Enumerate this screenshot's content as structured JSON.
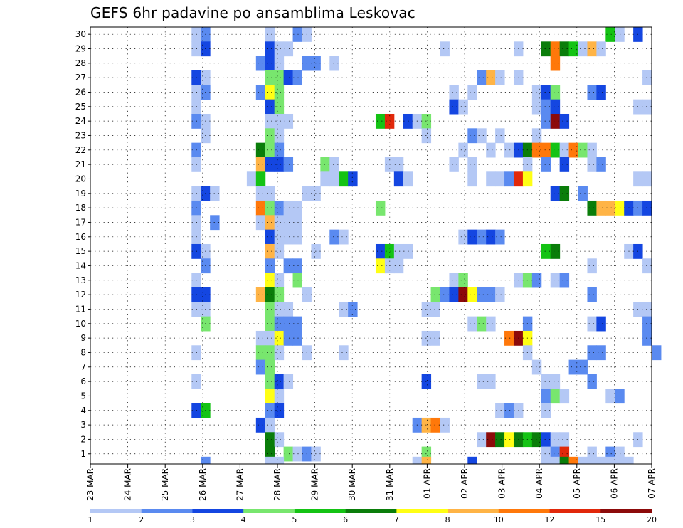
{
  "chart_data": {
    "type": "heatmap",
    "title": "GEFS 6hr padavine po ansamblima Leskovac",
    "xlabel": "",
    "ylabel": "",
    "y_tick_labels": [
      "1",
      "2",
      "3",
      "4",
      "5",
      "6",
      "7",
      "8",
      "9",
      "10",
      "11",
      "12",
      "13",
      "14",
      "15",
      "16",
      "17",
      "18",
      "19",
      "20",
      "21",
      "22",
      "23",
      "24",
      "25",
      "26",
      "27",
      "28",
      "29",
      "30"
    ],
    "x_tick_labels": [
      "23 MAR",
      "24 MAR",
      "25 MAR",
      "26 MAR",
      "27 MAR",
      "28 MAR",
      "29 MAR",
      "30 MAR",
      "31 MAR",
      "01 APR",
      "02 APR",
      "03 APR",
      "04 APR",
      "05 APR",
      "06 APR",
      "07 APR"
    ],
    "x_range_steps": [
      0,
      61
    ],
    "y_range": [
      0,
      30
    ],
    "grid": true,
    "colorbar": {
      "levels": [
        "1",
        "2",
        "3",
        "4",
        "5",
        "6",
        "7",
        "8",
        "10",
        "12",
        "15",
        "20"
      ],
      "colors": [
        "#b4c8f5",
        "#5a8af0",
        "#1446e1",
        "#78e66e",
        "#14c314",
        "#0a7d0a",
        "#ffff14",
        "#ffb446",
        "#ff780a",
        "#e1280a",
        "#8c0a0a"
      ]
    },
    "cells": [
      [
        11,
        30,
        1
      ],
      [
        12,
        30,
        2
      ],
      [
        19,
        30,
        1
      ],
      [
        22,
        30,
        2
      ],
      [
        23,
        30,
        1
      ],
      [
        56,
        30,
        5
      ],
      [
        57,
        30,
        1
      ],
      [
        59,
        30,
        3
      ],
      [
        11,
        29,
        1
      ],
      [
        12,
        29,
        3
      ],
      [
        19,
        29,
        3
      ],
      [
        20,
        29,
        1
      ],
      [
        21,
        29,
        1
      ],
      [
        38,
        29,
        1
      ],
      [
        46,
        29,
        1
      ],
      [
        49,
        29,
        6
      ],
      [
        50,
        29,
        9
      ],
      [
        51,
        29,
        6
      ],
      [
        52,
        29,
        5
      ],
      [
        53,
        29,
        1
      ],
      [
        54,
        29,
        8
      ],
      [
        55,
        29,
        1
      ],
      [
        18,
        28,
        2
      ],
      [
        19,
        28,
        3
      ],
      [
        20,
        28,
        1
      ],
      [
        23,
        28,
        2
      ],
      [
        24,
        28,
        2
      ],
      [
        26,
        28,
        1
      ],
      [
        50,
        28,
        9
      ],
      [
        11,
        27,
        3
      ],
      [
        12,
        27,
        1
      ],
      [
        19,
        27,
        4
      ],
      [
        20,
        27,
        4
      ],
      [
        21,
        27,
        3
      ],
      [
        22,
        27,
        2
      ],
      [
        42,
        27,
        2
      ],
      [
        43,
        27,
        8
      ],
      [
        44,
        27,
        1
      ],
      [
        46,
        27,
        1
      ],
      [
        60,
        27,
        1
      ],
      [
        11,
        26,
        1
      ],
      [
        12,
        26,
        2
      ],
      [
        18,
        26,
        2
      ],
      [
        19,
        26,
        7
      ],
      [
        20,
        26,
        4
      ],
      [
        39,
        26,
        1
      ],
      [
        41,
        26,
        1
      ],
      [
        48,
        26,
        1
      ],
      [
        49,
        26,
        3
      ],
      [
        50,
        26,
        4
      ],
      [
        54,
        26,
        2
      ],
      [
        55,
        26,
        3
      ],
      [
        11,
        25,
        1
      ],
      [
        19,
        25,
        3
      ],
      [
        20,
        25,
        4
      ],
      [
        39,
        25,
        3
      ],
      [
        40,
        25,
        1
      ],
      [
        48,
        25,
        1
      ],
      [
        49,
        25,
        2
      ],
      [
        50,
        25,
        3
      ],
      [
        59,
        25,
        1
      ],
      [
        60,
        25,
        1
      ],
      [
        11,
        24,
        2
      ],
      [
        12,
        24,
        1
      ],
      [
        19,
        24,
        1
      ],
      [
        20,
        24,
        1
      ],
      [
        21,
        24,
        1
      ],
      [
        31,
        24,
        5
      ],
      [
        32,
        24,
        10
      ],
      [
        34,
        24,
        3
      ],
      [
        35,
        24,
        1
      ],
      [
        36,
        24,
        4
      ],
      [
        49,
        24,
        2
      ],
      [
        50,
        24,
        11
      ],
      [
        51,
        24,
        3
      ],
      [
        12,
        23,
        1
      ],
      [
        19,
        23,
        4
      ],
      [
        20,
        23,
        1
      ],
      [
        36,
        23,
        1
      ],
      [
        41,
        23,
        2
      ],
      [
        42,
        23,
        1
      ],
      [
        44,
        23,
        1
      ],
      [
        48,
        23,
        1
      ],
      [
        11,
        22,
        2
      ],
      [
        18,
        22,
        6
      ],
      [
        19,
        22,
        4
      ],
      [
        20,
        22,
        2
      ],
      [
        40,
        22,
        1
      ],
      [
        43,
        22,
        1
      ],
      [
        45,
        22,
        1
      ],
      [
        46,
        22,
        3
      ],
      [
        47,
        22,
        6
      ],
      [
        48,
        22,
        9
      ],
      [
        49,
        22,
        9
      ],
      [
        50,
        22,
        5
      ],
      [
        51,
        22,
        1
      ],
      [
        52,
        22,
        9
      ],
      [
        53,
        22,
        4
      ],
      [
        54,
        22,
        1
      ],
      [
        11,
        21,
        1
      ],
      [
        18,
        21,
        8
      ],
      [
        19,
        21,
        3
      ],
      [
        20,
        21,
        3
      ],
      [
        21,
        21,
        2
      ],
      [
        25,
        21,
        4
      ],
      [
        26,
        21,
        1
      ],
      [
        32,
        21,
        1
      ],
      [
        33,
        21,
        1
      ],
      [
        39,
        21,
        1
      ],
      [
        41,
        21,
        1
      ],
      [
        47,
        21,
        1
      ],
      [
        49,
        21,
        2
      ],
      [
        51,
        21,
        3
      ],
      [
        54,
        21,
        1
      ],
      [
        55,
        21,
        2
      ],
      [
        17,
        20,
        1
      ],
      [
        18,
        20,
        5
      ],
      [
        25,
        20,
        1
      ],
      [
        26,
        20,
        1
      ],
      [
        27,
        20,
        5
      ],
      [
        28,
        20,
        3
      ],
      [
        33,
        20,
        3
      ],
      [
        34,
        20,
        1
      ],
      [
        41,
        20,
        1
      ],
      [
        43,
        20,
        1
      ],
      [
        44,
        20,
        1
      ],
      [
        45,
        20,
        2
      ],
      [
        46,
        20,
        10
      ],
      [
        47,
        20,
        7
      ],
      [
        59,
        20,
        1
      ],
      [
        60,
        20,
        1
      ],
      [
        11,
        19,
        1
      ],
      [
        12,
        19,
        3
      ],
      [
        13,
        19,
        1
      ],
      [
        18,
        19,
        1
      ],
      [
        19,
        19,
        1
      ],
      [
        23,
        19,
        1
      ],
      [
        24,
        19,
        1
      ],
      [
        50,
        19,
        3
      ],
      [
        51,
        19,
        6
      ],
      [
        53,
        19,
        2
      ],
      [
        11,
        18,
        2
      ],
      [
        18,
        18,
        9
      ],
      [
        19,
        18,
        4
      ],
      [
        20,
        18,
        2
      ],
      [
        21,
        18,
        1
      ],
      [
        22,
        18,
        1
      ],
      [
        31,
        18,
        4
      ],
      [
        54,
        18,
        6
      ],
      [
        55,
        18,
        8
      ],
      [
        56,
        18,
        8
      ],
      [
        57,
        18,
        7
      ],
      [
        58,
        18,
        3
      ],
      [
        59,
        18,
        2
      ],
      [
        60,
        18,
        3
      ],
      [
        11,
        17,
        1
      ],
      [
        13,
        17,
        2
      ],
      [
        18,
        17,
        1
      ],
      [
        19,
        17,
        8
      ],
      [
        20,
        17,
        1
      ],
      [
        21,
        17,
        1
      ],
      [
        22,
        17,
        1
      ],
      [
        11,
        16,
        1
      ],
      [
        19,
        16,
        3
      ],
      [
        20,
        16,
        1
      ],
      [
        21,
        16,
        1
      ],
      [
        22,
        16,
        1
      ],
      [
        26,
        16,
        2
      ],
      [
        27,
        16,
        1
      ],
      [
        40,
        16,
        1
      ],
      [
        41,
        16,
        3
      ],
      [
        42,
        16,
        2
      ],
      [
        43,
        16,
        3
      ],
      [
        44,
        16,
        2
      ],
      [
        11,
        15,
        3
      ],
      [
        12,
        15,
        1
      ],
      [
        19,
        15,
        8
      ],
      [
        20,
        15,
        1
      ],
      [
        24,
        15,
        1
      ],
      [
        31,
        15,
        3
      ],
      [
        32,
        15,
        5
      ],
      [
        33,
        15,
        1
      ],
      [
        34,
        15,
        1
      ],
      [
        49,
        15,
        5
      ],
      [
        50,
        15,
        6
      ],
      [
        58,
        15,
        1
      ],
      [
        59,
        15,
        3
      ],
      [
        12,
        14,
        2
      ],
      [
        19,
        14,
        2
      ],
      [
        21,
        14,
        2
      ],
      [
        22,
        14,
        2
      ],
      [
        31,
        14,
        7
      ],
      [
        32,
        14,
        1
      ],
      [
        33,
        14,
        1
      ],
      [
        54,
        14,
        1
      ],
      [
        60,
        14,
        1
      ],
      [
        11,
        13,
        1
      ],
      [
        19,
        13,
        7
      ],
      [
        20,
        13,
        1
      ],
      [
        22,
        13,
        4
      ],
      [
        39,
        13,
        1
      ],
      [
        40,
        13,
        4
      ],
      [
        46,
        13,
        1
      ],
      [
        47,
        13,
        4
      ],
      [
        48,
        13,
        2
      ],
      [
        50,
        13,
        1
      ],
      [
        51,
        13,
        2
      ],
      [
        11,
        12,
        3
      ],
      [
        12,
        12,
        3
      ],
      [
        18,
        12,
        8
      ],
      [
        19,
        12,
        6
      ],
      [
        20,
        12,
        4
      ],
      [
        23,
        12,
        1
      ],
      [
        37,
        12,
        4
      ],
      [
        38,
        12,
        2
      ],
      [
        39,
        12,
        3
      ],
      [
        40,
        12,
        11
      ],
      [
        41,
        12,
        7
      ],
      [
        42,
        12,
        2
      ],
      [
        43,
        12,
        2
      ],
      [
        44,
        12,
        1
      ],
      [
        54,
        12,
        2
      ],
      [
        11,
        11,
        1
      ],
      [
        12,
        11,
        1
      ],
      [
        19,
        11,
        4
      ],
      [
        20,
        11,
        1
      ],
      [
        21,
        11,
        1
      ],
      [
        27,
        11,
        1
      ],
      [
        28,
        11,
        2
      ],
      [
        36,
        11,
        1
      ],
      [
        37,
        11,
        1
      ],
      [
        59,
        11,
        1
      ],
      [
        60,
        11,
        1
      ],
      [
        12,
        10,
        4
      ],
      [
        19,
        10,
        4
      ],
      [
        20,
        10,
        2
      ],
      [
        21,
        10,
        2
      ],
      [
        22,
        10,
        2
      ],
      [
        41,
        10,
        1
      ],
      [
        42,
        10,
        4
      ],
      [
        43,
        10,
        1
      ],
      [
        47,
        10,
        2
      ],
      [
        54,
        10,
        1
      ],
      [
        55,
        10,
        3
      ],
      [
        60,
        10,
        2
      ],
      [
        18,
        9,
        1
      ],
      [
        19,
        9,
        1
      ],
      [
        20,
        9,
        7
      ],
      [
        21,
        9,
        2
      ],
      [
        22,
        9,
        2
      ],
      [
        36,
        9,
        1
      ],
      [
        37,
        9,
        1
      ],
      [
        45,
        9,
        9
      ],
      [
        46,
        9,
        11
      ],
      [
        47,
        9,
        7
      ],
      [
        60,
        9,
        2
      ],
      [
        11,
        8,
        1
      ],
      [
        18,
        8,
        4
      ],
      [
        19,
        8,
        4
      ],
      [
        20,
        8,
        1
      ],
      [
        23,
        8,
        1
      ],
      [
        27,
        8,
        1
      ],
      [
        47,
        8,
        1
      ],
      [
        54,
        8,
        2
      ],
      [
        55,
        8,
        2
      ],
      [
        61,
        8,
        2
      ],
      [
        18,
        7,
        2
      ],
      [
        19,
        7,
        4
      ],
      [
        48,
        7,
        1
      ],
      [
        52,
        7,
        2
      ],
      [
        53,
        7,
        2
      ],
      [
        11,
        6,
        1
      ],
      [
        19,
        6,
        4
      ],
      [
        20,
        6,
        3
      ],
      [
        21,
        6,
        1
      ],
      [
        36,
        6,
        3
      ],
      [
        42,
        6,
        1
      ],
      [
        43,
        6,
        1
      ],
      [
        49,
        6,
        1
      ],
      [
        50,
        6,
        1
      ],
      [
        54,
        6,
        2
      ],
      [
        19,
        5,
        7
      ],
      [
        20,
        5,
        1
      ],
      [
        49,
        5,
        2
      ],
      [
        50,
        5,
        4
      ],
      [
        51,
        5,
        1
      ],
      [
        56,
        5,
        1
      ],
      [
        57,
        5,
        2
      ],
      [
        11,
        4,
        3
      ],
      [
        12,
        4,
        5
      ],
      [
        19,
        4,
        2
      ],
      [
        20,
        4,
        3
      ],
      [
        44,
        4,
        1
      ],
      [
        45,
        4,
        2
      ],
      [
        46,
        4,
        1
      ],
      [
        49,
        4,
        1
      ],
      [
        18,
        3,
        3
      ],
      [
        19,
        3,
        1
      ],
      [
        35,
        3,
        2
      ],
      [
        36,
        3,
        8
      ],
      [
        37,
        3,
        9
      ],
      [
        38,
        3,
        1
      ],
      [
        19,
        2,
        6
      ],
      [
        20,
        2,
        1
      ],
      [
        42,
        2,
        1
      ],
      [
        43,
        2,
        11
      ],
      [
        44,
        2,
        6
      ],
      [
        45,
        2,
        7
      ],
      [
        46,
        2,
        6
      ],
      [
        47,
        2,
        5
      ],
      [
        48,
        2,
        6
      ],
      [
        49,
        2,
        3
      ],
      [
        50,
        2,
        1
      ],
      [
        51,
        2,
        1
      ],
      [
        59,
        2,
        1
      ],
      [
        19,
        1,
        6
      ],
      [
        21,
        1,
        4
      ],
      [
        22,
        1,
        1
      ],
      [
        23,
        1,
        2
      ],
      [
        24,
        1,
        1
      ],
      [
        36,
        1,
        4
      ],
      [
        49,
        1,
        1
      ],
      [
        50,
        1,
        2
      ],
      [
        51,
        1,
        10
      ],
      [
        54,
        1,
        1
      ],
      [
        56,
        1,
        2
      ],
      [
        57,
        1,
        1
      ],
      [
        12,
        0,
        2
      ],
      [
        19,
        0,
        1
      ],
      [
        20,
        0,
        1
      ],
      [
        35,
        0,
        1
      ],
      [
        36,
        0,
        8
      ],
      [
        41,
        0,
        3
      ],
      [
        49,
        0,
        1
      ],
      [
        50,
        0,
        1
      ],
      [
        51,
        0,
        6
      ],
      [
        52,
        0,
        9
      ],
      [
        53,
        0,
        1
      ],
      [
        54,
        0,
        1
      ],
      [
        55,
        0,
        1
      ],
      [
        56,
        0,
        1
      ],
      [
        57,
        0,
        1
      ],
      [
        58,
        0,
        1
      ]
    ]
  }
}
